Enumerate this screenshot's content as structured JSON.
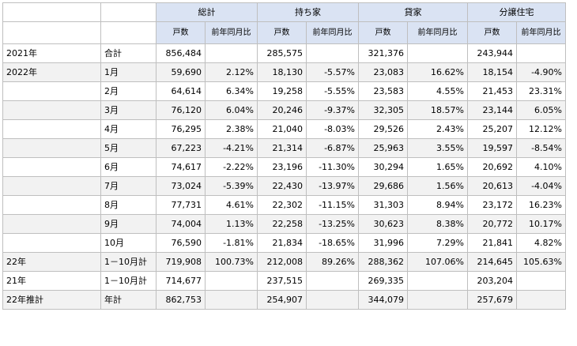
{
  "header": {
    "groups": [
      "総計",
      "持ち家",
      "貸家",
      "分譲住宅"
    ],
    "sub": [
      "戸数",
      "前年同月比"
    ]
  },
  "rows": [
    {
      "year": "2021年",
      "period": "合計",
      "cells": [
        "856,484",
        "",
        "285,575",
        "",
        "321,376",
        "",
        "243,944",
        ""
      ]
    },
    {
      "year": "2022年",
      "period": "1月",
      "cells": [
        "59,690",
        "2.12%",
        "18,130",
        "-5.57%",
        "23,083",
        "16.62%",
        "18,154",
        "-4.90%"
      ]
    },
    {
      "year": "",
      "period": "2月",
      "cells": [
        "64,614",
        "6.34%",
        "19,258",
        "-5.55%",
        "23,583",
        "4.55%",
        "21,453",
        "23.31%"
      ]
    },
    {
      "year": "",
      "period": "3月",
      "cells": [
        "76,120",
        "6.04%",
        "20,246",
        "-9.37%",
        "32,305",
        "18.57%",
        "23,144",
        "6.05%"
      ]
    },
    {
      "year": "",
      "period": "4月",
      "cells": [
        "76,295",
        "2.38%",
        "21,040",
        "-8.03%",
        "29,526",
        "2.43%",
        "25,207",
        "12.12%"
      ]
    },
    {
      "year": "",
      "period": "5月",
      "cells": [
        "67,223",
        "-4.21%",
        "21,314",
        "-6.87%",
        "25,963",
        "3.55%",
        "19,597",
        "-8.54%"
      ]
    },
    {
      "year": "",
      "period": "6月",
      "cells": [
        "74,617",
        "-2.22%",
        "23,196",
        "-11.30%",
        "30,294",
        "1.65%",
        "20,692",
        "4.10%"
      ]
    },
    {
      "year": "",
      "period": "7月",
      "cells": [
        "73,024",
        "-5.39%",
        "22,430",
        "-13.97%",
        "29,686",
        "1.56%",
        "20,613",
        "-4.04%"
      ]
    },
    {
      "year": "",
      "period": "8月",
      "cells": [
        "77,731",
        "4.61%",
        "22,302",
        "-11.15%",
        "31,303",
        "8.94%",
        "23,172",
        "16.23%"
      ]
    },
    {
      "year": "",
      "period": "9月",
      "cells": [
        "74,004",
        "1.13%",
        "22,258",
        "-13.25%",
        "30,623",
        "8.38%",
        "20,772",
        "10.17%"
      ]
    },
    {
      "year": "",
      "period": "10月",
      "cells": [
        "76,590",
        "-1.81%",
        "21,834",
        "-18.65%",
        "31,996",
        "7.29%",
        "21,841",
        "4.82%"
      ]
    },
    {
      "year": "22年",
      "period": "1－10月計",
      "cells": [
        "719,908",
        "100.73%",
        "212,008",
        "89.26%",
        "288,362",
        "107.06%",
        "214,645",
        "105.63%"
      ]
    },
    {
      "year": "21年",
      "period": "1－10月計",
      "cells": [
        "714,677",
        "",
        "237,515",
        "",
        "269,335",
        "",
        "203,204",
        ""
      ]
    },
    {
      "year": "22年推計",
      "period": "年計",
      "cells": [
        "862,753",
        "",
        "254,907",
        "",
        "344,079",
        "",
        "257,679",
        ""
      ]
    }
  ]
}
